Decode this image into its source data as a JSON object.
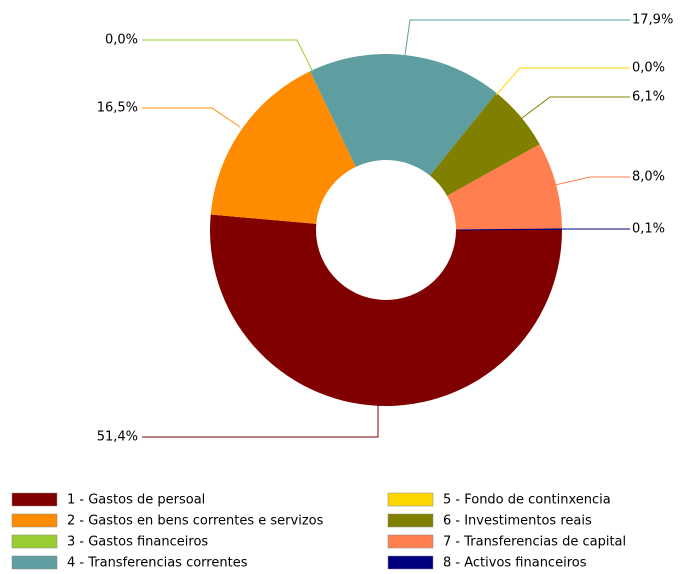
{
  "chart_data": {
    "type": "donut",
    "categories": [
      "1 - Gastos de persoal",
      "2 - Gastos en bens correntes e servizos",
      "3 - Gastos financeiros",
      "4 - Transferencias correntes",
      "5 - Fondo de continxencia",
      "6 - Investimentos reais",
      "7 - Transferencias de capital",
      "8 - Activos financeiros"
    ],
    "values": [
      51.4,
      16.5,
      0.0,
      17.9,
      0.0,
      6.1,
      8.0,
      0.1
    ],
    "value_labels": [
      "51,4%",
      "16,5%",
      "0,0%",
      "17,9%",
      "0,0%",
      "6,1%",
      "8,0%",
      "0,1%"
    ],
    "colors": [
      "#800000",
      "#ff8c00",
      "#9acd32",
      "#5f9ea0",
      "#ffd700",
      "#808000",
      "#ff7f50",
      "#000080"
    ]
  }
}
